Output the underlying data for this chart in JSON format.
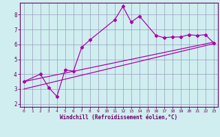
{
  "xlabel": "Windchill (Refroidissement éolien,°C)",
  "bg_color": "#d0eef0",
  "plot_bg_color": "#d0eef0",
  "line_color": "#aa00aa",
  "grid_color": "#9999bb",
  "text_color": "#660066",
  "spine_color": "#660066",
  "xlim": [
    -0.5,
    23.5
  ],
  "ylim": [
    1.8,
    8.8
  ],
  "xticks": [
    0,
    1,
    2,
    3,
    4,
    5,
    6,
    7,
    8,
    9,
    10,
    11,
    12,
    13,
    14,
    15,
    16,
    17,
    18,
    19,
    20,
    21,
    22,
    23
  ],
  "yticks": [
    2,
    3,
    4,
    5,
    6,
    7,
    8
  ],
  "jagged_x": [
    0,
    2,
    3,
    4,
    5,
    6,
    7,
    8,
    11,
    12,
    13,
    14,
    16,
    17,
    18,
    19,
    20,
    21,
    22,
    23
  ],
  "jagged_y": [
    3.5,
    4.0,
    3.1,
    2.5,
    4.3,
    4.2,
    5.8,
    6.3,
    7.65,
    8.55,
    7.5,
    7.9,
    6.6,
    6.45,
    6.5,
    6.5,
    6.65,
    6.6,
    6.65,
    6.1
  ],
  "line1_x": [
    0,
    23
  ],
  "line1_y": [
    3.5,
    6.15
  ],
  "line2_x": [
    0,
    23
  ],
  "line2_y": [
    3.0,
    6.05
  ]
}
